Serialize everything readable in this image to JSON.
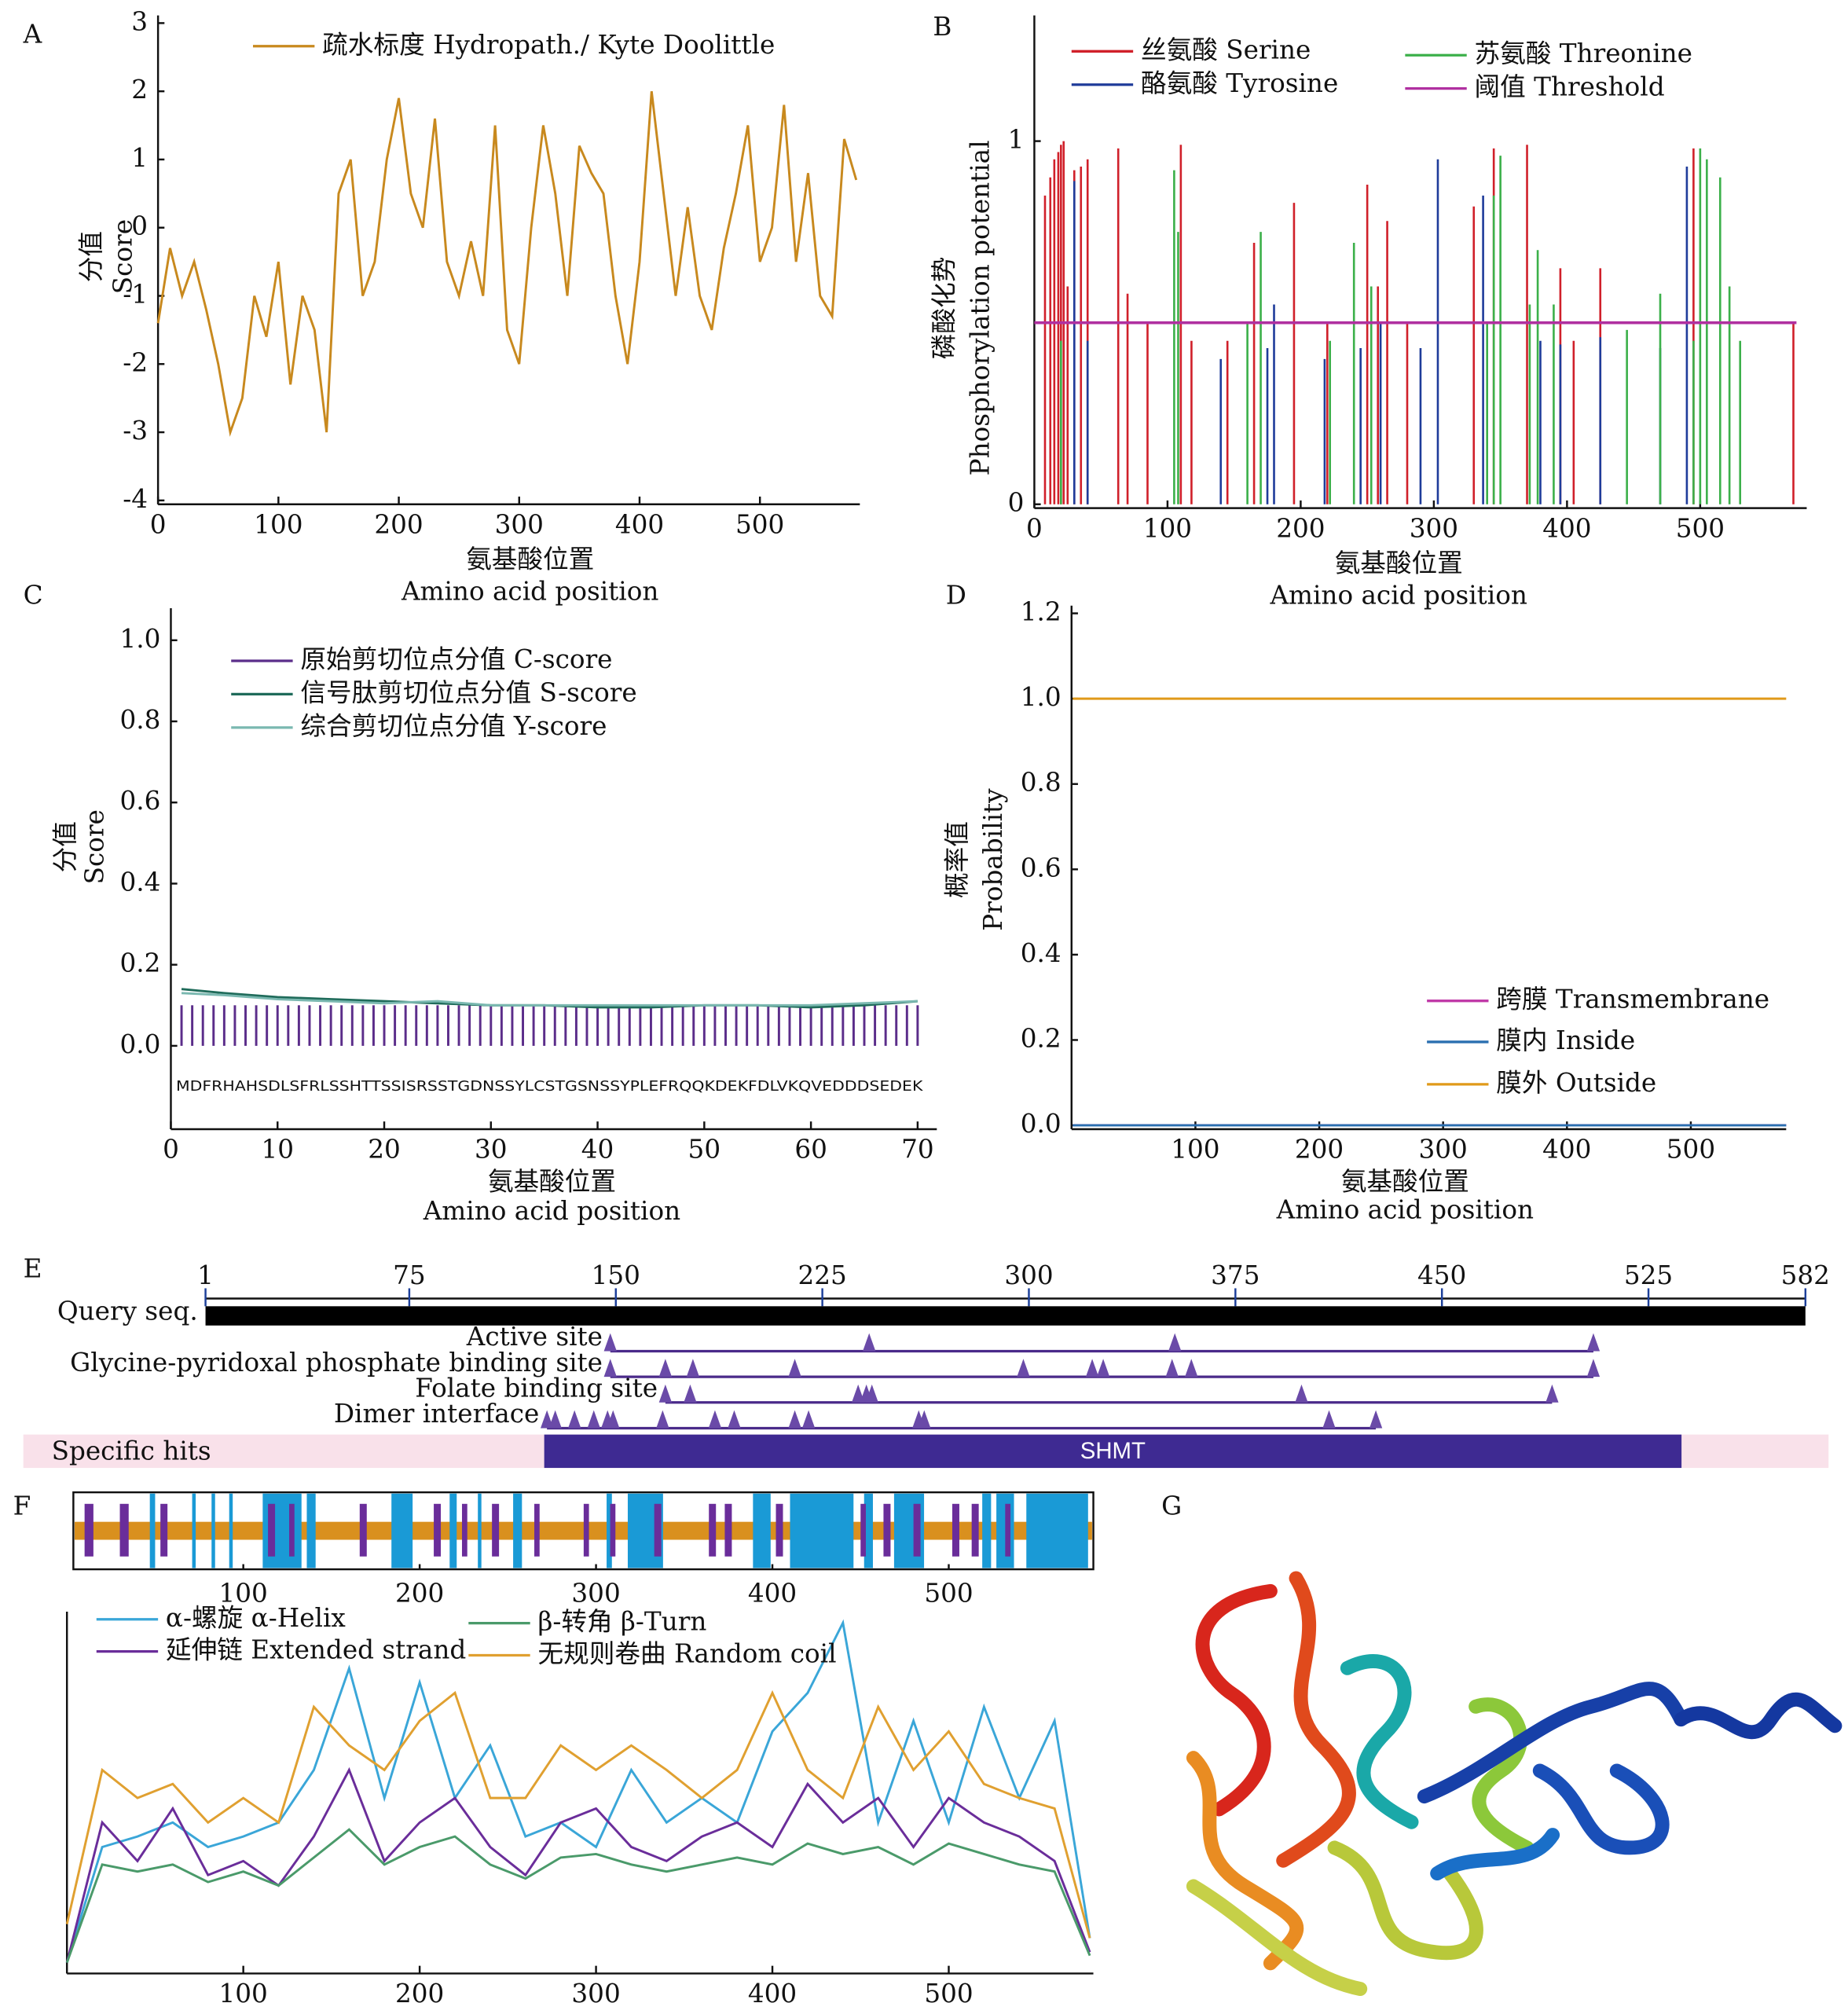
{
  "chart_data": [
    {
      "type": "line",
      "label": "A",
      "xlabel": [
        "氨基酸位置",
        "Amino acid position"
      ],
      "ylabel": [
        "分值",
        "Score"
      ],
      "xlim": [
        0,
        583
      ],
      "ylim": [
        -4,
        3
      ],
      "xticks": [
        0,
        100,
        200,
        300,
        400,
        500
      ],
      "yticks": [
        -4,
        -3,
        -2,
        -1,
        0,
        1,
        2,
        3
      ],
      "x": [
        0,
        10,
        20,
        30,
        40,
        50,
        60,
        70,
        80,
        90,
        100,
        110,
        120,
        130,
        140,
        150,
        160,
        170,
        180,
        190,
        200,
        210,
        220,
        230,
        240,
        250,
        260,
        270,
        280,
        290,
        300,
        310,
        320,
        330,
        340,
        350,
        360,
        370,
        380,
        390,
        400,
        410,
        420,
        430,
        440,
        450,
        460,
        470,
        480,
        490,
        500,
        510,
        520,
        530,
        540,
        550,
        560,
        570,
        580
      ],
      "series": [
        {
          "name": "疏水标度 Hydropath./ Kyte Doolittle",
          "color": "#c8891e",
          "values": [
            -1.4,
            -0.3,
            -1,
            -0.5,
            -1.2,
            -2,
            -3,
            -2.5,
            -1,
            -1.6,
            -0.5,
            -2.3,
            -1,
            -1.5,
            -3,
            0.5,
            1,
            -1,
            -0.5,
            1,
            1.9,
            0.5,
            0,
            1.6,
            -0.5,
            -1,
            -0.2,
            -1,
            1.5,
            -1.5,
            -2,
            0,
            1.5,
            0.5,
            -1,
            1.2,
            0.8,
            0.5,
            -1,
            -2,
            -0.5,
            2,
            0.5,
            -1,
            0.3,
            -1,
            -1.5,
            -0.3,
            0.5,
            1.5,
            -0.5,
            0,
            1.8,
            -0.5,
            0.8,
            -1,
            -1.3,
            1.3,
            0.7
          ]
        }
      ]
    },
    {
      "type": "stem",
      "label": "B",
      "xlabel": [
        "氨基酸位置",
        "Amino acid position"
      ],
      "ylabel": [
        "磷酸化势",
        "Phosphorylation potential"
      ],
      "xlim": [
        0,
        580
      ],
      "ylim": [
        0,
        1.325
      ],
      "xticks": [
        0,
        100,
        200,
        300,
        400,
        500
      ],
      "yticks": [
        0,
        1
      ],
      "series": [
        {
          "name": "丝氨酸 Serine",
          "color": "#d0202a",
          "x": [
            8,
            12,
            15,
            18,
            20,
            22,
            25,
            30,
            35,
            40,
            63,
            70,
            85,
            110,
            118,
            145,
            165,
            195,
            220,
            250,
            258,
            265,
            280,
            330,
            345,
            370,
            395,
            405,
            425,
            495,
            570
          ],
          "values": [
            0.85,
            0.9,
            0.95,
            0.97,
            0.99,
            1.0,
            0.6,
            0.92,
            0.93,
            0.95,
            0.98,
            0.58,
            0.5,
            0.99,
            0.45,
            0.45,
            0.72,
            0.83,
            0.5,
            0.88,
            0.6,
            0.78,
            0.5,
            0.82,
            0.98,
            0.99,
            0.65,
            0.45,
            0.65,
            0.98,
            0.5
          ]
        },
        {
          "name": "酪氨酸 Tyrosine",
          "color": "#1f3c9a",
          "x": [
            30,
            40,
            140,
            175,
            180,
            218,
            245,
            260,
            290,
            303,
            337,
            380,
            395,
            425,
            470,
            490
          ],
          "values": [
            0.89,
            0.45,
            0.4,
            0.43,
            0.55,
            0.4,
            0.43,
            0.5,
            0.43,
            0.95,
            0.85,
            0.45,
            0.44,
            0.46,
            0.43,
            0.93
          ]
        },
        {
          "name": "苏氨酸 Threonine",
          "color": "#3cb04a",
          "x": [
            20,
            105,
            108,
            160,
            170,
            222,
            240,
            253,
            340,
            345,
            350,
            372,
            378,
            390,
            445,
            470,
            495,
            500,
            505,
            515,
            522,
            530
          ],
          "values": [
            0.45,
            0.92,
            0.75,
            0.5,
            0.75,
            0.45,
            0.72,
            0.6,
            0.5,
            0.85,
            0.96,
            0.55,
            0.7,
            0.55,
            0.48,
            0.58,
            0.45,
            0.98,
            0.95,
            0.9,
            0.6,
            0.45
          ]
        }
      ],
      "threshold": {
        "name": "阈值 Threshold",
        "color": "#b030a0",
        "value": 0.5
      }
    },
    {
      "type": "line",
      "label": "C",
      "xlabel": [
        "氨基酸位置",
        "Amino acid position"
      ],
      "ylabel": [
        "分值",
        "Score"
      ],
      "xlim": [
        0,
        71.8
      ],
      "ylim": [
        -0.196,
        1.06
      ],
      "xticks": [
        0,
        10,
        20,
        30,
        40,
        50,
        60,
        70
      ],
      "yticks": [
        {
          "value": 0,
          "label": "0.0"
        },
        0.2,
        0.4,
        0.6,
        0.8,
        {
          "value": 1,
          "label": "1.0"
        }
      ],
      "sequence": "MDFRHAHSDLSFRLSSHTTSSISRSSTGDNSSYLCSTGSNSSYPLEFRQQKDEKFDLVKQVEDDDSEDEK",
      "x": [
        1,
        5,
        10,
        15,
        20,
        25,
        30,
        35,
        40,
        45,
        50,
        55,
        60,
        65,
        70
      ],
      "series": [
        {
          "name": "原始剪切位点分值 C-score",
          "color": "#5b2d8a",
          "kind": "stem",
          "x": [
            1,
            2,
            3,
            4,
            5,
            6,
            7,
            8,
            9,
            10,
            11,
            12,
            13,
            14,
            15,
            16,
            17,
            18,
            19,
            20,
            21,
            22,
            23,
            24,
            25,
            26,
            27,
            28,
            29,
            30,
            31,
            32,
            33,
            34,
            35,
            36,
            37,
            38,
            39,
            40,
            41,
            42,
            43,
            44,
            45,
            46,
            47,
            48,
            49,
            50,
            51,
            52,
            53,
            54,
            55,
            56,
            57,
            58,
            59,
            60,
            61,
            62,
            63,
            64,
            65,
            66,
            67,
            68,
            69,
            70
          ],
          "values": [
            0.1,
            0.1,
            0.1,
            0.1,
            0.1,
            0.1,
            0.1,
            0.1,
            0.1,
            0.1,
            0.1,
            0.1,
            0.1,
            0.1,
            0.1,
            0.1,
            0.1,
            0.1,
            0.1,
            0.1,
            0.1,
            0.1,
            0.1,
            0.1,
            0.1,
            0.1,
            0.1,
            0.1,
            0.1,
            0.1,
            0.1,
            0.1,
            0.1,
            0.1,
            0.1,
            0.1,
            0.1,
            0.1,
            0.1,
            0.1,
            0.1,
            0.1,
            0.1,
            0.1,
            0.1,
            0.1,
            0.1,
            0.1,
            0.1,
            0.1,
            0.1,
            0.1,
            0.1,
            0.1,
            0.1,
            0.1,
            0.1,
            0.1,
            0.1,
            0.1,
            0.1,
            0.1,
            0.1,
            0.1,
            0.1,
            0.1,
            0.1,
            0.1,
            0.1,
            0.1
          ]
        },
        {
          "name": "信号肽剪切位点分值 S-score",
          "color": "#1f6b5a",
          "kind": "line",
          "values": [
            0.14,
            0.13,
            0.12,
            0.115,
            0.11,
            0.105,
            0.1,
            0.1,
            0.095,
            0.095,
            0.1,
            0.1,
            0.095,
            0.1,
            0.11
          ]
        },
        {
          "name": "综合剪切位点分值 Y-score",
          "color": "#7ab8b0",
          "kind": "line",
          "values": [
            0.13,
            0.125,
            0.115,
            0.11,
            0.105,
            0.11,
            0.1,
            0.1,
            0.1,
            0.1,
            0.1,
            0.1,
            0.1,
            0.105,
            0.11
          ]
        }
      ]
    },
    {
      "type": "line",
      "label": "D",
      "xlabel": [
        "氨基酸位置",
        "Amino acid position"
      ],
      "ylabel": [
        "概率值",
        "Probability"
      ],
      "xlim": [
        0,
        577
      ],
      "ylim": [
        0,
        1.2
      ],
      "xticks": [
        100,
        200,
        300,
        400,
        500
      ],
      "yticks": [
        {
          "value": 0,
          "label": "0.0"
        },
        0.2,
        0.4,
        0.6,
        0.8,
        {
          "value": 1,
          "label": "1.0"
        },
        1.2
      ],
      "x": [
        1,
        577
      ],
      "series": [
        {
          "name": "跨膜 Transmembrane",
          "color": "#c03aa8",
          "values": [
            0,
            0
          ]
        },
        {
          "name": "膜内 Inside",
          "color": "#2a6fb0",
          "values": [
            0,
            0
          ]
        },
        {
          "name": "膜外 Outside",
          "color": "#e09a1a",
          "values": [
            1,
            1
          ]
        }
      ]
    },
    {
      "type": "domain",
      "label": "E",
      "query": "Query seq.",
      "xlim": [
        1,
        582
      ],
      "xticks": [
        1,
        75,
        150,
        225,
        300,
        375,
        450,
        525,
        582
      ],
      "tracks": [
        {
          "name": "Active site",
          "positions": [
            148,
            242,
            353,
            505
          ]
        },
        {
          "name": "Glycine-pyridoxal phosphate binding site",
          "positions": [
            148,
            168,
            178,
            215,
            298,
            323,
            327,
            352,
            359,
            505
          ]
        },
        {
          "name": "Folate binding site",
          "positions": [
            168,
            177,
            238,
            241,
            243,
            399,
            490
          ]
        },
        {
          "name": "Dimer interface",
          "positions": [
            125,
            128,
            135,
            142,
            147,
            149,
            167,
            186,
            193,
            215,
            220,
            260,
            262,
            409,
            426
          ]
        }
      ],
      "specific_hits": {
        "label": "Specific hits",
        "name": "SHMT",
        "start": 124,
        "end": 537
      }
    },
    {
      "type": "track",
      "label": "F",
      "xlim": [
        0,
        582
      ],
      "xticks": [
        100,
        200,
        300,
        400,
        500
      ],
      "helices": [
        [
          47,
          50
        ],
        [
          71,
          73
        ],
        [
          82,
          84
        ],
        [
          92,
          94
        ],
        [
          111,
          133
        ],
        [
          136,
          141
        ],
        [
          184,
          196
        ],
        [
          217,
          221
        ],
        [
          233,
          235
        ],
        [
          253,
          258
        ],
        [
          306,
          309
        ],
        [
          318,
          338
        ],
        [
          389,
          399
        ],
        [
          410,
          446
        ],
        [
          452,
          457
        ],
        [
          469,
          486
        ],
        [
          519,
          524
        ],
        [
          527,
          537
        ],
        [
          544,
          579
        ]
      ],
      "strands": [
        [
          10,
          15
        ],
        [
          30,
          35
        ],
        [
          53,
          57
        ],
        [
          114,
          118
        ],
        [
          126,
          129
        ],
        [
          166,
          170
        ],
        [
          208,
          212
        ],
        [
          224,
          227
        ],
        [
          241,
          245
        ],
        [
          265,
          268
        ],
        [
          293,
          296
        ],
        [
          308,
          311
        ],
        [
          333,
          337
        ],
        [
          364,
          368
        ],
        [
          373,
          377
        ],
        [
          402,
          406
        ],
        [
          450,
          453
        ],
        [
          463,
          467
        ],
        [
          480,
          484
        ],
        [
          502,
          506
        ],
        [
          513,
          517
        ],
        [
          532,
          535
        ]
      ]
    },
    {
      "type": "line",
      "xlim": [
        0,
        582
      ],
      "ylim": [
        0,
        1
      ],
      "xticks": [
        100,
        200,
        300,
        400,
        500
      ],
      "x": [
        0,
        20,
        40,
        60,
        80,
        100,
        120,
        140,
        160,
        180,
        200,
        220,
        240,
        260,
        280,
        300,
        320,
        340,
        360,
        380,
        400,
        420,
        440,
        460,
        480,
        500,
        520,
        540,
        560,
        580
      ],
      "series": [
        {
          "name": "α-螺旋 α-Helix",
          "color": "#3aa6d8",
          "values": [
            0.02,
            0.35,
            0.38,
            0.42,
            0.35,
            0.38,
            0.42,
            0.57,
            0.86,
            0.49,
            0.82,
            0.49,
            0.64,
            0.38,
            0.42,
            0.35,
            0.57,
            0.42,
            0.49,
            0.42,
            0.68,
            0.79,
            0.99,
            0.42,
            0.71,
            0.42,
            0.75,
            0.49,
            0.71,
            0.09
          ]
        },
        {
          "name": "延伸链 Extended strand",
          "color": "#6a2d9a",
          "values": [
            0.02,
            0.42,
            0.31,
            0.46,
            0.27,
            0.31,
            0.24,
            0.38,
            0.57,
            0.31,
            0.42,
            0.49,
            0.35,
            0.27,
            0.42,
            0.46,
            0.35,
            0.31,
            0.38,
            0.42,
            0.35,
            0.53,
            0.42,
            0.49,
            0.35,
            0.49,
            0.42,
            0.38,
            0.31,
            0.05
          ]
        },
        {
          "name": "β-转角 β-Turn",
          "color": "#4a9a6a",
          "values": [
            0.02,
            0.3,
            0.28,
            0.3,
            0.25,
            0.28,
            0.24,
            0.32,
            0.4,
            0.3,
            0.35,
            0.38,
            0.3,
            0.26,
            0.32,
            0.33,
            0.3,
            0.28,
            0.3,
            0.32,
            0.3,
            0.36,
            0.33,
            0.35,
            0.3,
            0.36,
            0.33,
            0.3,
            0.28,
            0.04
          ]
        },
        {
          "name": "无规则卷曲 Random coil",
          "color": "#e0a030",
          "values": [
            0.13,
            0.57,
            0.49,
            0.53,
            0.42,
            0.49,
            0.42,
            0.75,
            0.64,
            0.57,
            0.71,
            0.79,
            0.49,
            0.49,
            0.64,
            0.57,
            0.64,
            0.57,
            0.49,
            0.57,
            0.79,
            0.57,
            0.49,
            0.75,
            0.57,
            0.68,
            0.53,
            0.49,
            0.46,
            0.09
          ]
        }
      ]
    },
    {
      "type": "image",
      "label": "G"
    }
  ]
}
